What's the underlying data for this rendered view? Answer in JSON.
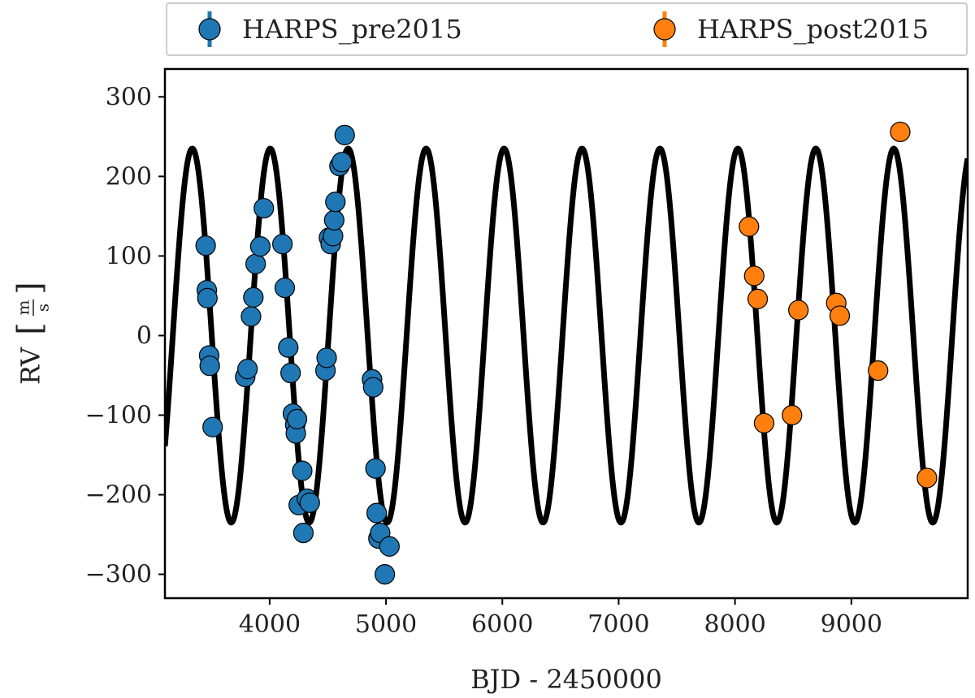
{
  "chart_data": {
    "type": "scatter",
    "title": "",
    "xlabel": "BJD - 2450000",
    "ylabel": "RV",
    "ylabel_unit_num": "m",
    "ylabel_unit_den": "s",
    "xlim": [
      3100,
      10000
    ],
    "ylim": [
      -330,
      335
    ],
    "xticks": [
      4000,
      5000,
      6000,
      7000,
      8000,
      9000
    ],
    "xtick_labels": [
      "4000",
      "5000",
      "6000",
      "7000",
      "8000",
      "9000"
    ],
    "yticks": [
      300,
      200,
      100,
      0,
      -100,
      -200,
      -300
    ],
    "ytick_labels": [
      "300",
      "200",
      "100",
      "0",
      "−100",
      "−200",
      "−300"
    ],
    "grid": false,
    "legend_position": "top",
    "model": {
      "type": "sine",
      "amplitude": 235,
      "period": 670,
      "phase_peak_x": 3335,
      "color": "#000000"
    },
    "series": [
      {
        "name": "HARPS_pre2015",
        "color": "#1f77b4",
        "points": [
          [
            3450,
            113
          ],
          [
            3460,
            57
          ],
          [
            3465,
            47
          ],
          [
            3480,
            -25
          ],
          [
            3485,
            -38
          ],
          [
            3510,
            -115
          ],
          [
            3790,
            -52
          ],
          [
            3810,
            -42
          ],
          [
            3840,
            24
          ],
          [
            3860,
            48
          ],
          [
            3880,
            90
          ],
          [
            3920,
            112
          ],
          [
            3950,
            160
          ],
          [
            4110,
            115
          ],
          [
            4130,
            60
          ],
          [
            4160,
            -15
          ],
          [
            4180,
            -47
          ],
          [
            4200,
            -98
          ],
          [
            4220,
            -112
          ],
          [
            4225,
            -123
          ],
          [
            4235,
            -105
          ],
          [
            4250,
            -213
          ],
          [
            4280,
            -170
          ],
          [
            4290,
            -248
          ],
          [
            4320,
            -205
          ],
          [
            4345,
            -210
          ],
          [
            4480,
            -44
          ],
          [
            4490,
            -28
          ],
          [
            4510,
            123
          ],
          [
            4525,
            115
          ],
          [
            4545,
            125
          ],
          [
            4555,
            145
          ],
          [
            4565,
            168
          ],
          [
            4600,
            213
          ],
          [
            4620,
            218
          ],
          [
            4645,
            252
          ],
          [
            4880,
            -55
          ],
          [
            4890,
            -65
          ],
          [
            4910,
            -167
          ],
          [
            4920,
            -223
          ],
          [
            4935,
            -255
          ],
          [
            4950,
            -248
          ],
          [
            4990,
            -300
          ],
          [
            5030,
            -265
          ]
        ]
      },
      {
        "name": "HARPS_post2015",
        "color": "#ff7f0e",
        "points": [
          [
            8120,
            137
          ],
          [
            8165,
            75
          ],
          [
            8195,
            46
          ],
          [
            8250,
            -110
          ],
          [
            8490,
            -100
          ],
          [
            8545,
            32
          ],
          [
            8870,
            41
          ],
          [
            8900,
            25
          ],
          [
            9230,
            -44
          ],
          [
            9420,
            256
          ],
          [
            9650,
            -179
          ]
        ]
      }
    ]
  }
}
